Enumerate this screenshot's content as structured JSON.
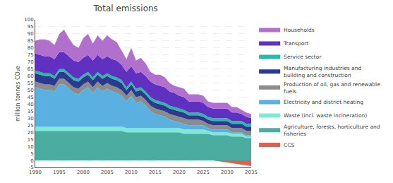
{
  "chart_data": {
    "type": "area",
    "stacked": true,
    "grid": true,
    "title": "Total emissions",
    "y_label": "million tonnes CO₂e",
    "x": [
      1990,
      1991,
      1992,
      1993,
      1994,
      1995,
      1996,
      1997,
      1998,
      1999,
      2000,
      2001,
      2002,
      2003,
      2004,
      2005,
      2006,
      2007,
      2008,
      2009,
      2010,
      2011,
      2012,
      2013,
      2014,
      2015,
      2016,
      2017,
      2018,
      2019,
      2020,
      2021,
      2022,
      2023,
      2024,
      2025,
      2026,
      2027,
      2028,
      2029,
      2030,
      2031,
      2032,
      2033,
      2034,
      2035
    ],
    "xlim": [
      1990,
      2035
    ],
    "xticks": [
      1990,
      1995,
      2000,
      2005,
      2010,
      2015,
      2020,
      2025,
      2030,
      2035
    ],
    "ylim": [
      -5,
      100
    ],
    "yticks": [
      -5,
      0,
      5,
      10,
      15,
      20,
      25,
      30,
      35,
      40,
      45,
      50,
      55,
      60,
      65,
      70,
      75,
      80,
      85,
      90,
      95,
      100
    ],
    "series": [
      {
        "name": "Agriculture, forests, horticulture and\nfisheries",
        "color": "#4aada0",
        "values": [
          21,
          21,
          21,
          21,
          21,
          21,
          21,
          21,
          21,
          21,
          21,
          21,
          21,
          21,
          21,
          21,
          21,
          21,
          21,
          20,
          20,
          20,
          20,
          20,
          20,
          20,
          20,
          20,
          20,
          20,
          20,
          19,
          19,
          19,
          19,
          19,
          19,
          18,
          18,
          18,
          18,
          17,
          17,
          17,
          16,
          16
        ]
      },
      {
        "name": "Waste (incl. waste incineration)",
        "color": "#80e8d8",
        "values": [
          3,
          3,
          3,
          3,
          3,
          3,
          3,
          3,
          3,
          3,
          3,
          3,
          3,
          3,
          3,
          3,
          3,
          3,
          3,
          3,
          3,
          3,
          3,
          3,
          3,
          3,
          3,
          3,
          3,
          3,
          3,
          3,
          3,
          3,
          3,
          3,
          2,
          2,
          2,
          2,
          2,
          2,
          2,
          2,
          1,
          1
        ]
      },
      {
        "name": "Electricity and district heating",
        "color": "#5ab0e0",
        "values": [
          28,
          27,
          26,
          26,
          25,
          30,
          30,
          27,
          24,
          23,
          26,
          28,
          24,
          28,
          25,
          27,
          25,
          24,
          22,
          19,
          23,
          18,
          19,
          16,
          12,
          10,
          9,
          8,
          6,
          5,
          4,
          4,
          3,
          3,
          3,
          3,
          2,
          2,
          2,
          2,
          2,
          1,
          1,
          1,
          1,
          1
        ]
      },
      {
        "name": "Production of oil, gas and renewable\nfuels",
        "color": "#8c8c8c",
        "values": [
          4,
          4,
          4,
          4,
          4,
          4,
          4,
          4,
          4,
          4,
          4,
          4,
          4,
          4,
          4,
          4,
          4,
          4,
          4,
          4,
          4,
          4,
          4,
          4,
          4,
          4,
          4,
          4,
          4,
          4,
          4,
          4,
          4,
          4,
          4,
          3,
          3,
          3,
          3,
          3,
          3,
          3,
          3,
          3,
          3,
          3
        ]
      },
      {
        "name": "Manufacturing industries and\nbuilding and construction",
        "color": "#2b3a8f",
        "values": [
          6,
          6,
          6,
          6,
          5,
          5,
          5,
          5,
          5,
          5,
          5,
          5,
          5,
          5,
          5,
          5,
          5,
          5,
          5,
          4,
          4,
          4,
          4,
          4,
          4,
          4,
          4,
          4,
          4,
          4,
          4,
          4,
          3,
          3,
          3,
          3,
          3,
          3,
          3,
          3,
          3,
          3,
          3,
          3,
          3,
          3
        ]
      },
      {
        "name": "Service sector",
        "color": "#2ab8a8",
        "values": [
          2,
          2,
          2,
          2,
          2,
          2,
          2,
          2,
          2,
          2,
          2,
          2,
          2,
          2,
          2,
          2,
          2,
          2,
          2,
          2,
          2,
          2,
          2,
          2,
          2,
          2,
          2,
          2,
          2,
          2,
          2,
          2,
          2,
          2,
          2,
          2,
          2,
          2,
          2,
          2,
          2,
          2,
          2,
          2,
          2,
          2
        ]
      },
      {
        "name": "Transport",
        "color": "#6030c0",
        "values": [
          12,
          12,
          12,
          12,
          12,
          12,
          12,
          12,
          12,
          12,
          12,
          12,
          12,
          12,
          12,
          12,
          12,
          12,
          11,
          11,
          11,
          11,
          11,
          11,
          11,
          11,
          11,
          11,
          10,
          10,
          9,
          9,
          8,
          8,
          8,
          8,
          7,
          7,
          7,
          7,
          7,
          6,
          6,
          5,
          5,
          4
        ]
      },
      {
        "name": "Households",
        "color": "#b070cc",
        "values": [
          9,
          11,
          12,
          11,
          10,
          13,
          16,
          13,
          11,
          10,
          14,
          15,
          12,
          14,
          13,
          15,
          14,
          13,
          10,
          9,
          13,
          9,
          10,
          9,
          7,
          7,
          8,
          7,
          6,
          5,
          6,
          6,
          5,
          5,
          5,
          5,
          4,
          4,
          4,
          4,
          4,
          4,
          4,
          3,
          3,
          3
        ]
      },
      {
        "name": "CCS",
        "color": "#e06050",
        "values": [
          0,
          0,
          0,
          0,
          0,
          0,
          0,
          0,
          0,
          0,
          0,
          0,
          0,
          0,
          0,
          0,
          0,
          0,
          0,
          0,
          0,
          0,
          0,
          0,
          0,
          0,
          0,
          0,
          0,
          0,
          0,
          0,
          0,
          0,
          0,
          0,
          0,
          0,
          -0.5,
          -1,
          -1.5,
          -2,
          -2.5,
          -3,
          -3.5,
          -4
        ]
      }
    ]
  }
}
